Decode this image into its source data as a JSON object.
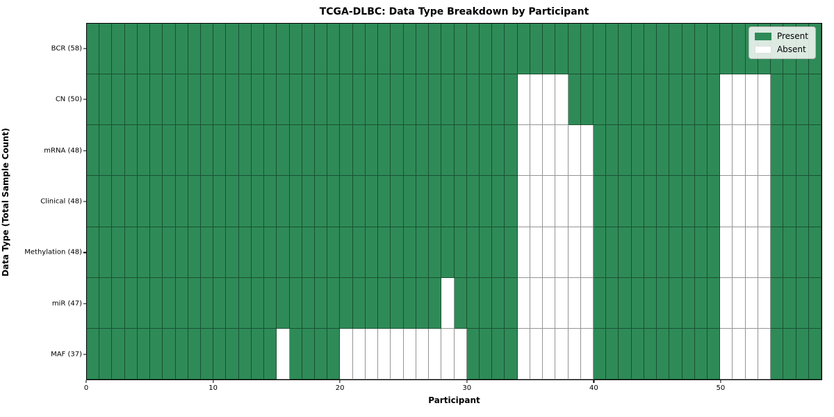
{
  "title": "TCGA-DLBC: Data Type Breakdown by Participant",
  "xlabel": "Participant",
  "ylabel": "Data Type (Total Sample Count)",
  "legend": {
    "present_label": "Present",
    "absent_label": "Absent"
  },
  "colors": {
    "present": "#2E8B57",
    "absent": "#FFFFFF",
    "gridline": "rgba(0,0,0,0.42)",
    "spine": "#000000",
    "legend_bg": "rgba(250,250,250,0.85)"
  },
  "chart_data": {
    "type": "heatmap",
    "title": "TCGA-DLBC: Data Type Breakdown by Participant",
    "xlabel": "Participant",
    "ylabel": "Data Type (Total Sample Count)",
    "x_range": [
      0,
      58
    ],
    "n_participants": 58,
    "x_ticks": [
      0,
      10,
      20,
      30,
      40,
      50
    ],
    "grid": true,
    "legend_position": "upper right",
    "legend_entries": [
      {
        "label": "Present",
        "color": "#2E8B57"
      },
      {
        "label": "Absent",
        "color": "#FFFFFF"
      }
    ],
    "rows": [
      {
        "label": "BCR (58)",
        "name": "BCR",
        "total_sample_count": 58,
        "absent_participants": []
      },
      {
        "label": "CN (50)",
        "name": "CN",
        "total_sample_count": 50,
        "absent_participants": [
          34,
          35,
          36,
          37,
          50,
          51,
          52,
          53
        ]
      },
      {
        "label": "mRNA (48)",
        "name": "mRNA",
        "total_sample_count": 48,
        "absent_participants": [
          34,
          35,
          36,
          37,
          38,
          39,
          50,
          51,
          52,
          53
        ]
      },
      {
        "label": "Clinical (48)",
        "name": "Clinical",
        "total_sample_count": 48,
        "absent_participants": [
          34,
          35,
          36,
          37,
          38,
          39,
          50,
          51,
          52,
          53
        ]
      },
      {
        "label": "Methylation (48)",
        "name": "Methylation",
        "total_sample_count": 48,
        "absent_participants": [
          34,
          35,
          36,
          37,
          38,
          39,
          50,
          51,
          52,
          53
        ]
      },
      {
        "label": "miR (47)",
        "name": "miR",
        "total_sample_count": 47,
        "absent_participants": [
          28,
          34,
          35,
          36,
          37,
          38,
          39,
          50,
          51,
          52,
          53
        ]
      },
      {
        "label": "MAF (37)",
        "name": "MAF",
        "total_sample_count": 37,
        "absent_participants": [
          15,
          20,
          21,
          22,
          23,
          24,
          25,
          26,
          27,
          28,
          29,
          34,
          35,
          36,
          37,
          38,
          39,
          50,
          51,
          52,
          53
        ]
      }
    ]
  }
}
